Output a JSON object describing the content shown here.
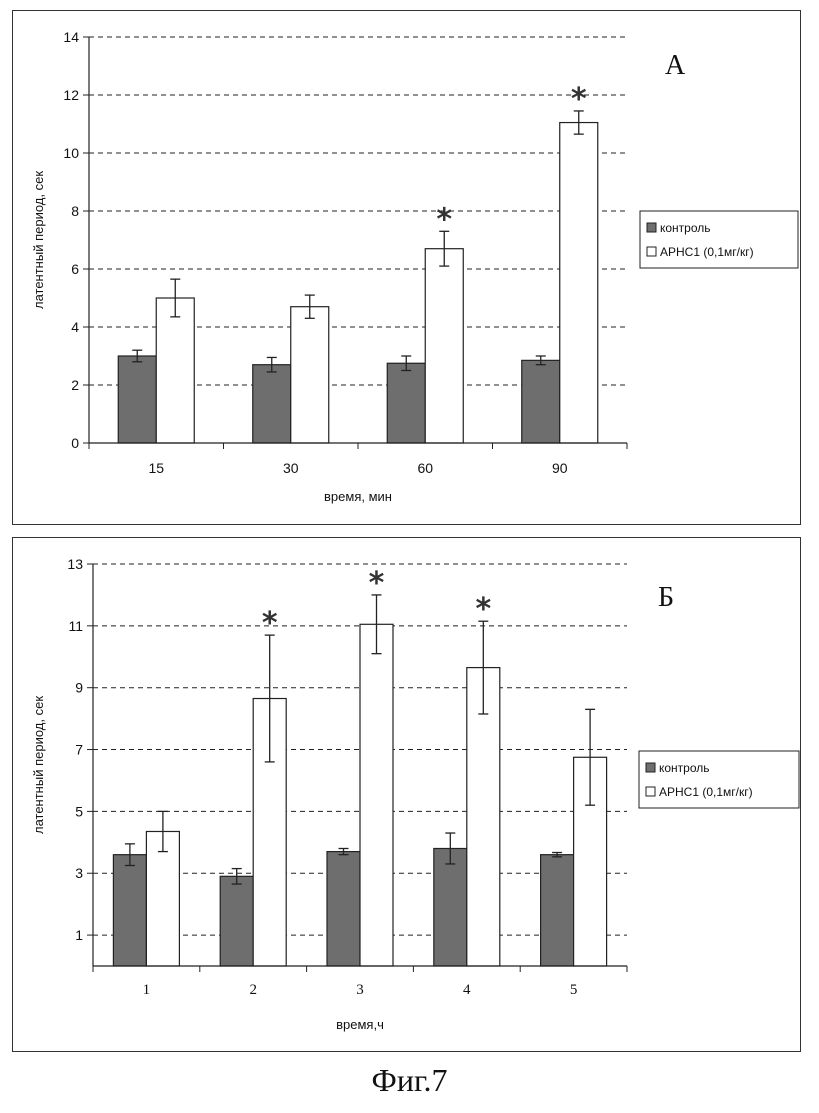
{
  "figure_caption": "Фиг.7",
  "colors": {
    "control": "#6e6e6e",
    "treatment": "#ffffff",
    "stroke": "#222222",
    "grid": "#222222"
  },
  "chart_data": [
    {
      "panel_label": "А",
      "type": "bar",
      "xlabel": "время, мин",
      "ylabel": "латентный период, сек",
      "ylim": [
        0,
        14
      ],
      "yticks": [
        0,
        2,
        4,
        6,
        8,
        10,
        12,
        14
      ],
      "grid": "dashed horizontal",
      "legend_position": "right",
      "categories": [
        "15",
        "30",
        "60",
        "90"
      ],
      "series": [
        {
          "name": "контроль",
          "values": [
            3.0,
            2.7,
            2.75,
            2.85
          ],
          "errors": [
            0.2,
            0.25,
            0.25,
            0.15
          ]
        },
        {
          "name": "АРНС1 (0,1мг/кг)",
          "values": [
            5.0,
            4.7,
            6.7,
            11.05
          ],
          "errors": [
            0.65,
            0.4,
            0.6,
            0.4
          ]
        }
      ],
      "significance": [
        false,
        false,
        true,
        true
      ],
      "significance_marker": "*"
    },
    {
      "panel_label": "Б",
      "type": "bar",
      "xlabel": "время,ч",
      "ylabel": "латентный период, сек",
      "ylim": [
        0,
        13
      ],
      "yticks": [
        1,
        3,
        5,
        7,
        9,
        11,
        13
      ],
      "grid": "dashed horizontal",
      "legend_position": "right",
      "categories": [
        "1",
        "2",
        "3",
        "4",
        "5"
      ],
      "series": [
        {
          "name": "контроль",
          "values": [
            3.6,
            2.9,
            3.7,
            3.8,
            3.6
          ],
          "errors": [
            0.35,
            0.25,
            0.1,
            0.5,
            0.07
          ]
        },
        {
          "name": "АРНС1 (0,1мг/кг)",
          "values": [
            4.35,
            8.65,
            11.05,
            9.65,
            6.75
          ],
          "errors": [
            0.65,
            2.05,
            0.95,
            1.5,
            1.55
          ]
        }
      ],
      "significance": [
        false,
        true,
        true,
        true,
        false
      ],
      "significance_marker": "*"
    }
  ]
}
